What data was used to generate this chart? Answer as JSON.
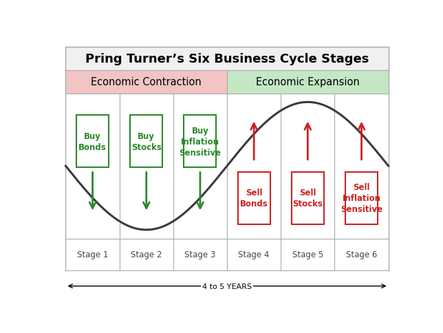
{
  "title": "Pring Turner’s Six Business Cycle Stages",
  "contraction_label": "Economic Contraction",
  "expansion_label": "Economic Expansion",
  "stages": [
    "Stage 1",
    "Stage 2",
    "Stage 3",
    "Stage 4",
    "Stage 5",
    "Stage 6"
  ],
  "buy_labels": [
    [
      "Buy",
      "Bonds"
    ],
    [
      "Buy",
      "Stocks"
    ],
    [
      "Buy",
      "Inflation",
      "Sensitive"
    ]
  ],
  "sell_labels": [
    [
      "Sell",
      "Bonds"
    ],
    [
      "Sell",
      "Stocks"
    ],
    [
      "Sell",
      "Inflation",
      "Sensitive"
    ]
  ],
  "contraction_bg": "#f2c4c4",
  "expansion_bg": "#c4e8c4",
  "buy_box_color": "#2a8a2a",
  "sell_box_color": "#cc2222",
  "arrow_up_color": "#cc2222",
  "arrow_down_color": "#2a8a2a",
  "wave_color": "#3a3a3a",
  "grid_color": "#aaaaaa",
  "title_bg": "#f0f0f0",
  "years_label": "4 to 5 YEARS",
  "bg_color": "#ffffff",
  "outer_border_color": "#666666"
}
